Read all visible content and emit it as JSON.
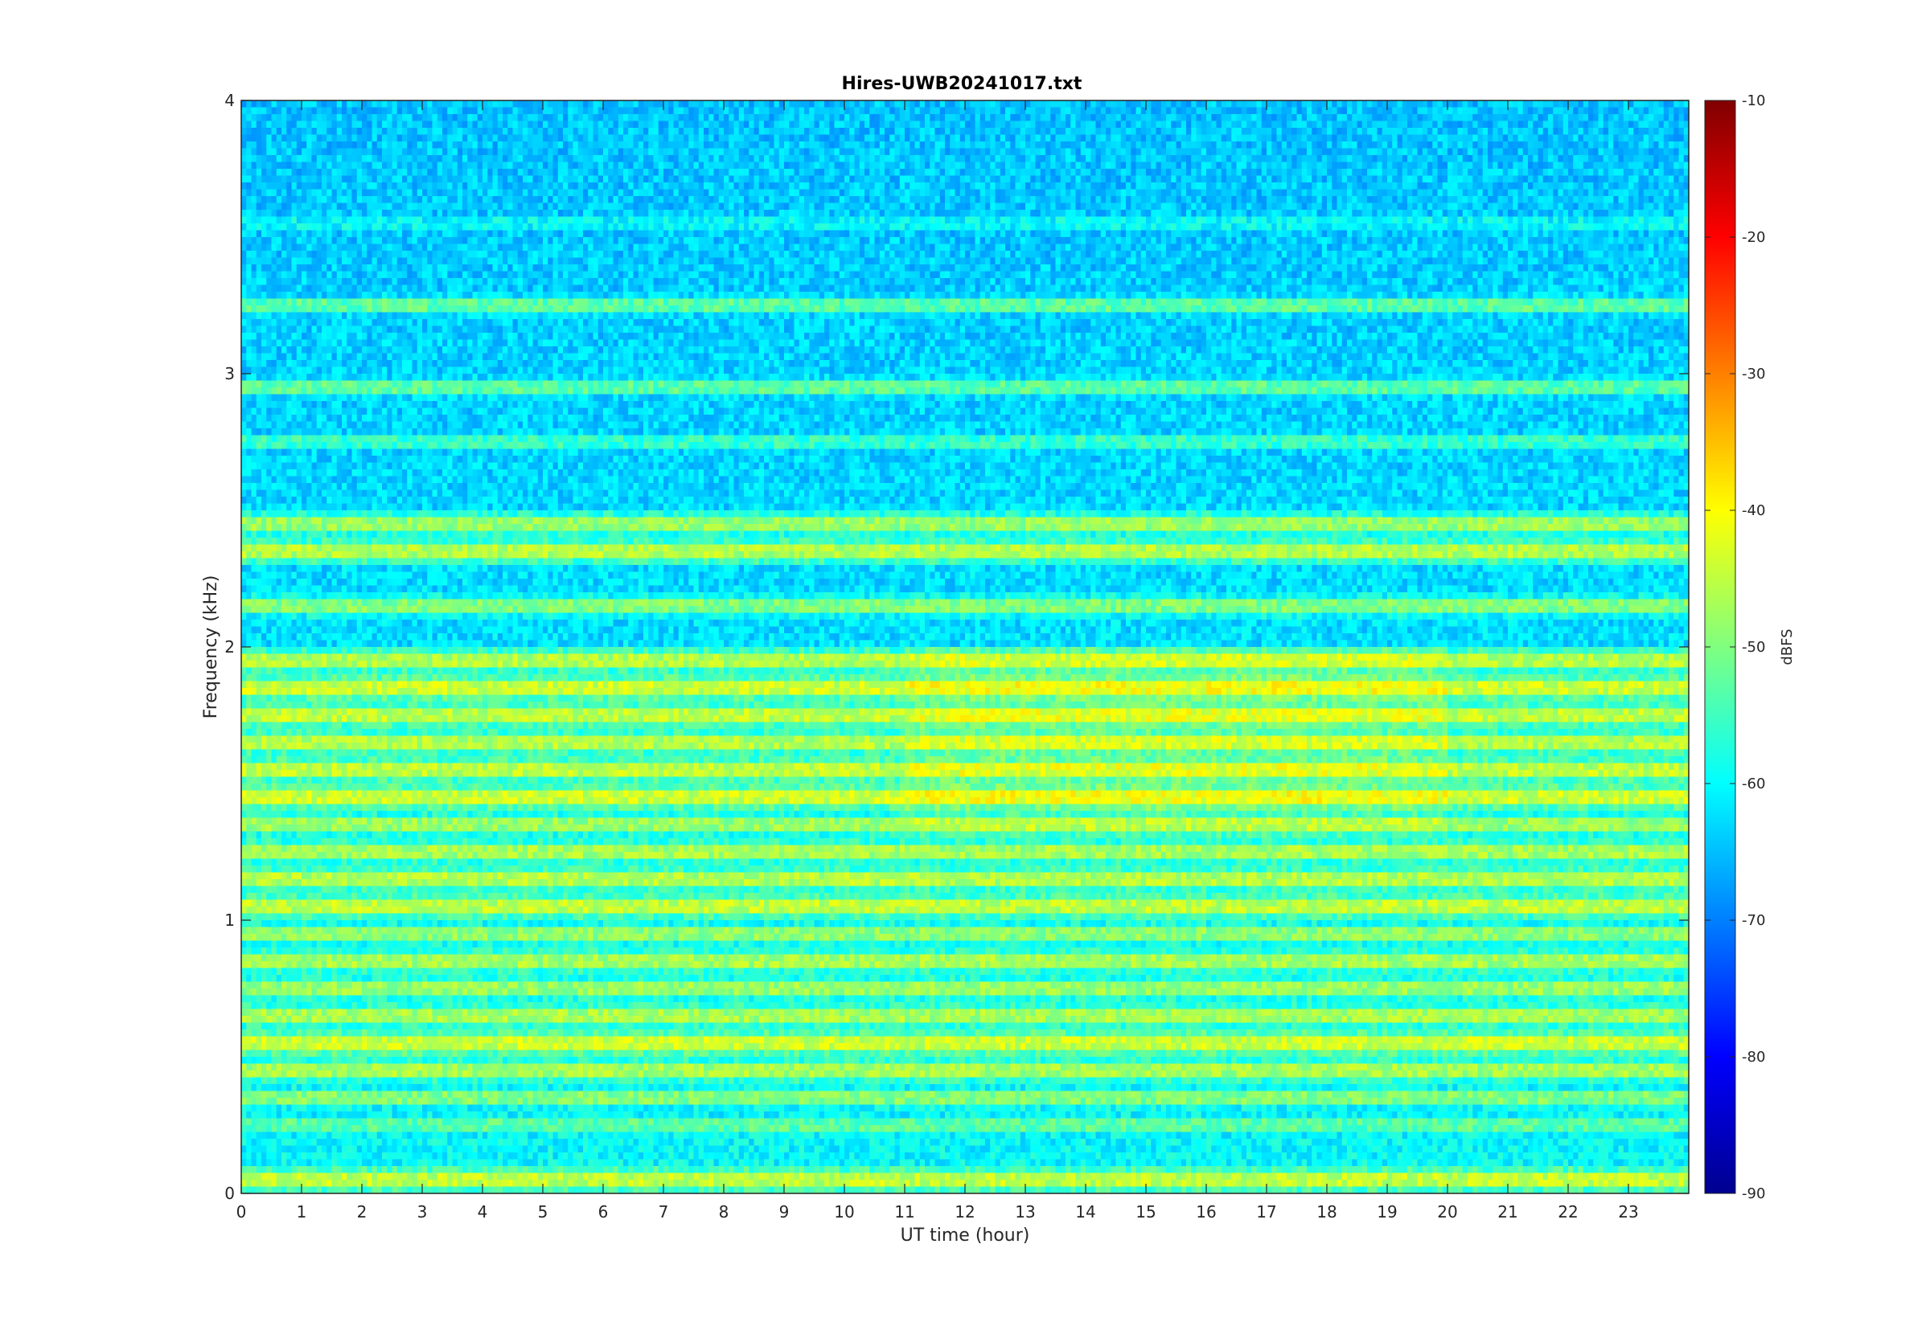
{
  "chart_data": {
    "type": "heatmap",
    "title": "Hires-UWB20241017.txt",
    "xlabel": "UT time (hour)",
    "ylabel": "Frequency (kHz)",
    "xlim": [
      0,
      24
    ],
    "ylim": [
      0,
      4
    ],
    "x_ticks": [
      "0",
      "1",
      "2",
      "3",
      "4",
      "5",
      "6",
      "7",
      "8",
      "9",
      "10",
      "11",
      "12",
      "13",
      "14",
      "15",
      "16",
      "17",
      "18",
      "19",
      "20",
      "21",
      "22",
      "23"
    ],
    "y_ticks": [
      "0",
      "1",
      "2",
      "3",
      "4"
    ],
    "colormap": "jet",
    "colorbar": {
      "label": "dBFS",
      "range": [
        -90,
        -10
      ],
      "ticks": [
        "-90",
        "-80",
        "-70",
        "-60",
        "-50",
        "-40",
        "-30",
        "-20",
        "-10"
      ]
    },
    "z_unit": "dBFS",
    "grid": false,
    "band_levels_dBFS": [
      {
        "freq_khz": 0.05,
        "level": -44
      },
      {
        "freq_khz": 0.25,
        "level": -52
      },
      {
        "freq_khz": 0.35,
        "level": -49
      },
      {
        "freq_khz": 0.45,
        "level": -46
      },
      {
        "freq_khz": 0.55,
        "level": -43
      },
      {
        "freq_khz": 0.65,
        "level": -46
      },
      {
        "freq_khz": 0.75,
        "level": -47
      },
      {
        "freq_khz": 0.85,
        "level": -46
      },
      {
        "freq_khz": 0.95,
        "level": -48
      },
      {
        "freq_khz": 1.05,
        "level": -44
      },
      {
        "freq_khz": 1.15,
        "level": -45
      },
      {
        "freq_khz": 1.25,
        "level": -46
      },
      {
        "freq_khz": 1.35,
        "level": -47
      },
      {
        "freq_khz": 1.45,
        "level": -43
      },
      {
        "freq_khz": 1.55,
        "level": -44
      },
      {
        "freq_khz": 1.65,
        "level": -45
      },
      {
        "freq_khz": 1.75,
        "level": -44
      },
      {
        "freq_khz": 1.85,
        "level": -43
      },
      {
        "freq_khz": 1.95,
        "level": -45
      },
      {
        "freq_khz": 2.15,
        "level": -49
      },
      {
        "freq_khz": 2.35,
        "level": -45
      },
      {
        "freq_khz": 2.45,
        "level": -47
      },
      {
        "freq_khz": 2.75,
        "level": -55
      },
      {
        "freq_khz": 2.95,
        "level": -52
      },
      {
        "freq_khz": 3.25,
        "level": -52
      },
      {
        "freq_khz": 3.55,
        "level": -59
      },
      {
        "freq_khz": 3.85,
        "level": -64
      }
    ]
  }
}
